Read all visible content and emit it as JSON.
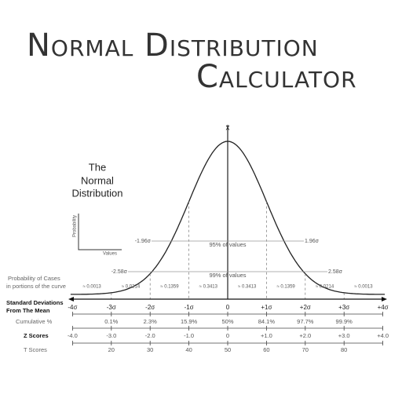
{
  "header": {
    "title_line1": "Normal Distribution",
    "title_line2": "Calculator"
  },
  "inset": {
    "lines": [
      "The",
      "Normal",
      "Distribution"
    ],
    "y_axis": "Probability",
    "x_axis": "Values"
  },
  "curve": {
    "mean_label": "x̄",
    "interval_95": {
      "left": "-1.96σ",
      "right": "1.96σ",
      "label": "95% of values"
    },
    "interval_99": {
      "left": "-2.58σ",
      "right": "2.58σ",
      "label": "99% of values"
    }
  },
  "probability": {
    "label_lines": [
      "Probability of Cases",
      "in portions of the curve"
    ],
    "values": [
      "≈ 0.0013",
      "≈ 0.0214",
      "≈ 0.1359",
      "≈ 0.3413",
      "≈ 0.3413",
      "≈ 0.1359",
      "≈ 0.0214",
      "≈ 0.0013"
    ]
  },
  "rows": [
    {
      "label_lines": [
        "Standard Deviations",
        "From The Mean"
      ],
      "labels": [
        "-4σ",
        "-3σ",
        "-2σ",
        "-1σ",
        "0",
        "+1σ",
        "+2σ",
        "+3σ",
        "+4σ"
      ]
    },
    {
      "label_lines": [
        "Cumulative %"
      ],
      "labels": [
        "0.1%",
        "2.3%",
        "15.9%",
        "50%",
        "84.1%",
        "97.7%",
        "99.9%"
      ]
    },
    {
      "label_lines": [
        "Z Scores"
      ],
      "labels": [
        "-4.0",
        "-3.0",
        "-2.0",
        "-1.0",
        "0",
        "+1.0",
        "+2.0",
        "+3.0",
        "+4.0"
      ]
    },
    {
      "label_lines": [
        "T Scores"
      ],
      "labels": [
        "20",
        "30",
        "40",
        "50",
        "60",
        "70",
        "80"
      ]
    }
  ]
}
